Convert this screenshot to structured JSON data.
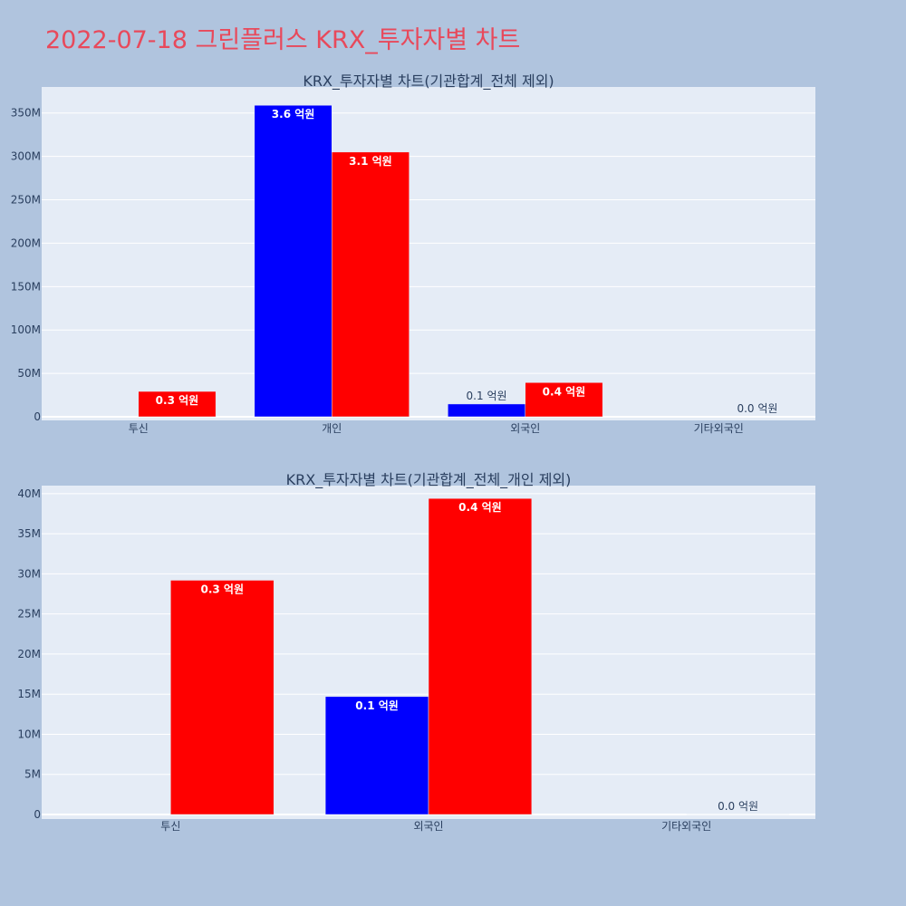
{
  "page": {
    "title": "2022-07-18 그린플러스 KRX_투자자별 차트",
    "background": "#b0c4de",
    "title_color": "#e8495b",
    "plot_background": "#e5ecf6",
    "series_colors": [
      "#0000ff",
      "#ff0000"
    ]
  },
  "chart_data": [
    {
      "type": "bar",
      "title": "KRX_투자자별 차트(기관합계_전체 제외)",
      "categories": [
        "투신",
        "개인",
        "외국인",
        "기타외국인"
      ],
      "series": [
        {
          "color": "#0000ff",
          "values": [
            0,
            358900000,
            14700000,
            0
          ],
          "labels": [
            "",
            "3.6 억원",
            "0.1 억원",
            ""
          ],
          "label_inside": [
            false,
            true,
            false,
            false
          ]
        },
        {
          "color": "#ff0000",
          "values": [
            29200000,
            305000000,
            39400000,
            0.3
          ],
          "labels": [
            "0.3 억원",
            "3.1 억원",
            "0.4 억원",
            "0.0 억원"
          ],
          "label_inside": [
            true,
            true,
            true,
            false
          ]
        }
      ],
      "ylim": [
        0,
        380000000
      ],
      "yticks": [
        0,
        50000000,
        100000000,
        150000000,
        200000000,
        250000000,
        300000000,
        350000000
      ],
      "ytick_labels": [
        "0",
        "50M",
        "100M",
        "150M",
        "200M",
        "250M",
        "300M",
        "350M"
      ],
      "grid": true,
      "legend": "none"
    },
    {
      "type": "bar",
      "title": "KRX_투자자별 차트(기관합계_전체_개인 제외)",
      "categories": [
        "투신",
        "외국인",
        "기타외국인"
      ],
      "series": [
        {
          "color": "#0000ff",
          "values": [
            0,
            14700000,
            0
          ],
          "labels": [
            "",
            "0.1 억원",
            ""
          ],
          "label_inside": [
            false,
            true,
            false
          ]
        },
        {
          "color": "#ff0000",
          "values": [
            29200000,
            39400000,
            0.3
          ],
          "labels": [
            "0.3 억원",
            "0.4 억원",
            "0.0 억원"
          ],
          "label_inside": [
            true,
            true,
            false
          ]
        }
      ],
      "ylim": [
        0,
        41000000
      ],
      "yticks": [
        0,
        5000000,
        10000000,
        15000000,
        20000000,
        25000000,
        30000000,
        35000000,
        40000000
      ],
      "ytick_labels": [
        "0",
        "5M",
        "10M",
        "15M",
        "20M",
        "25M",
        "30M",
        "35M",
        "40M"
      ],
      "grid": true,
      "legend": "none"
    }
  ]
}
